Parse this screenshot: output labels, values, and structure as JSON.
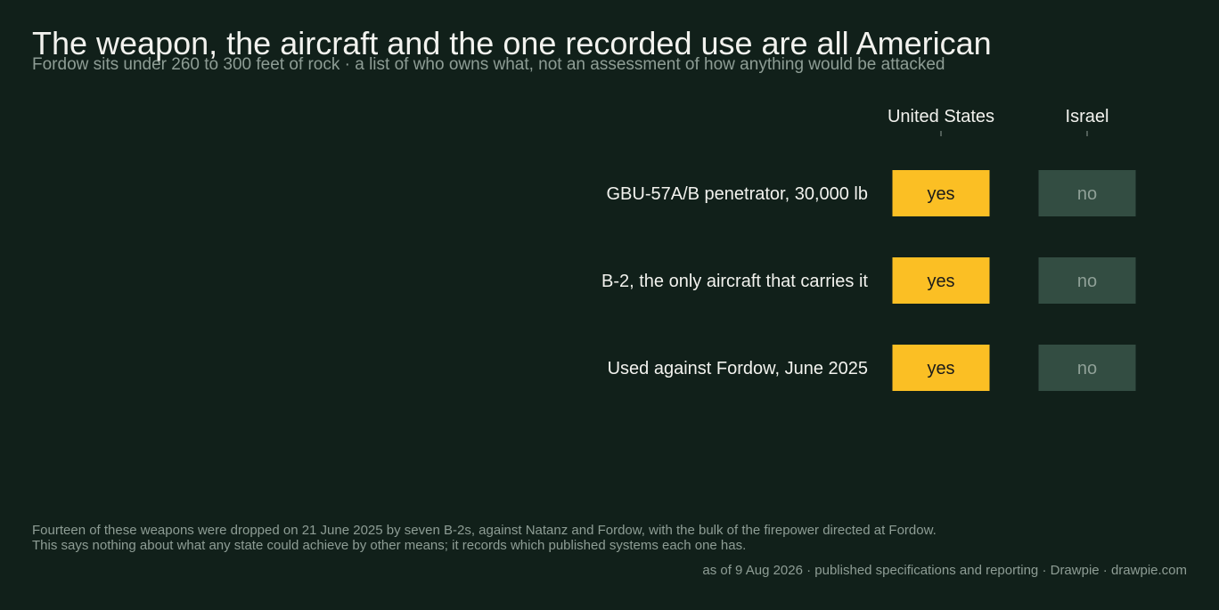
{
  "header": {
    "title": "The weapon, the aircraft and the one recorded use are all American",
    "subtitle": "Fordow sits under 260 to 300 feet of rock · a list of who owns what, not an assessment of how anything would be attacked"
  },
  "chart_data": {
    "type": "table",
    "columns": [
      "United States",
      "Israel"
    ],
    "rows": [
      {
        "label": "GBU-57A/B penetrator, 30,000 lb",
        "values": [
          "yes",
          "no"
        ]
      },
      {
        "label": "B-2, the only aircraft that carries it",
        "values": [
          "yes",
          "no"
        ]
      },
      {
        "label": "Used against Fordow, June 2025",
        "values": [
          "yes",
          "no"
        ]
      }
    ]
  },
  "colors": {
    "background": "#11201a",
    "yes_fill": "#fbbf24",
    "yes_text": "#1a1a1a",
    "no_fill": "#334d42",
    "no_text": "#8fa097",
    "label_text": "#f2f2ee",
    "muted_text": "#8e9d95"
  },
  "footer": {
    "note_line1": "Fourteen of these weapons were dropped on 21 June 2025 by seven B-2s, against Natanz and Fordow, with the bulk of the firepower directed at Fordow.",
    "note_line2": "This says nothing about what any state could achieve by other means; it records which published systems each one has.",
    "source": "as of 9 Aug 2026  ·  published specifications and reporting  ·  Drawpie · drawpie.com"
  }
}
